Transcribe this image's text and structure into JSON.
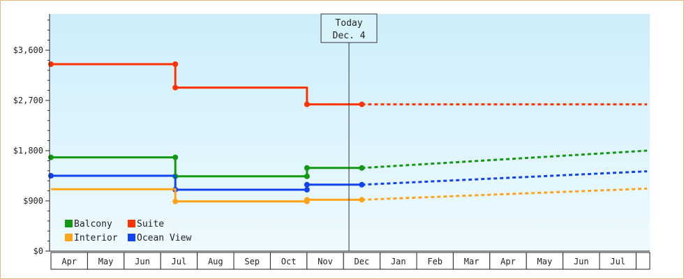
{
  "chart_data": {
    "type": "line",
    "title": "",
    "xlabel": "",
    "ylabel": "",
    "ylim": [
      0,
      4250
    ],
    "yticks": [
      {
        "value": 0,
        "label": "$0"
      },
      {
        "value": 900,
        "label": "$900"
      },
      {
        "value": 1800,
        "label": "$1,800"
      },
      {
        "value": 2700,
        "label": "$2,700"
      },
      {
        "value": 3600,
        "label": "$3,600"
      }
    ],
    "x_months": [
      "Apr",
      "May",
      "Jun",
      "Jul",
      "Aug",
      "Sep",
      "Oct",
      "Nov",
      "Dec",
      "Jan",
      "Feb",
      "Mar",
      "Apr",
      "May",
      "Jun",
      "Jul"
    ],
    "today_marker": {
      "line1": "Today",
      "line2": "Dec. 4",
      "x": 8.0
    },
    "legend_position": "bottom-left",
    "series": [
      {
        "name": "Suite",
        "color": "#ff3300",
        "history": [
          [
            -0.5,
            3350
          ],
          [
            2.9,
            3350
          ],
          [
            2.9,
            2930
          ],
          [
            6.5,
            2930
          ],
          [
            6.5,
            2630
          ],
          [
            8.0,
            2630
          ]
        ],
        "markers": [
          [
            -0.5,
            3350
          ],
          [
            2.9,
            3350
          ],
          [
            2.9,
            2930
          ],
          [
            6.5,
            2630
          ],
          [
            8.0,
            2630
          ]
        ],
        "forecast": [
          [
            8.0,
            2630
          ],
          [
            15.8,
            2630
          ]
        ]
      },
      {
        "name": "Balcony",
        "color": "#119911",
        "history": [
          [
            -0.5,
            1680
          ],
          [
            2.9,
            1680
          ],
          [
            2.9,
            1340
          ],
          [
            6.5,
            1340
          ],
          [
            6.5,
            1490
          ],
          [
            8.0,
            1490
          ]
        ],
        "markers": [
          [
            -0.5,
            1680
          ],
          [
            2.9,
            1680
          ],
          [
            2.9,
            1340
          ],
          [
            6.5,
            1340
          ],
          [
            6.5,
            1490
          ],
          [
            8.0,
            1490
          ]
        ],
        "forecast": [
          [
            8.0,
            1490
          ],
          [
            15.8,
            1800
          ]
        ]
      },
      {
        "name": "Ocean View",
        "color": "#1144ee",
        "history": [
          [
            -0.5,
            1350
          ],
          [
            2.9,
            1350
          ],
          [
            2.9,
            1100
          ],
          [
            6.5,
            1100
          ],
          [
            6.5,
            1190
          ],
          [
            8.0,
            1190
          ]
        ],
        "markers": [
          [
            -0.5,
            1350
          ],
          [
            2.9,
            1100
          ],
          [
            6.5,
            1100
          ],
          [
            6.5,
            1190
          ],
          [
            8.0,
            1190
          ]
        ],
        "forecast": [
          [
            8.0,
            1190
          ],
          [
            15.8,
            1430
          ]
        ]
      },
      {
        "name": "Interior",
        "color": "#ffa31a",
        "history": [
          [
            -0.5,
            1110
          ],
          [
            2.9,
            1110
          ],
          [
            2.9,
            890
          ],
          [
            6.5,
            890
          ],
          [
            6.5,
            920
          ],
          [
            8.0,
            920
          ]
        ],
        "markers": [
          [
            2.9,
            890
          ],
          [
            6.5,
            890
          ],
          [
            6.5,
            920
          ],
          [
            8.0,
            920
          ]
        ],
        "forecast": [
          [
            8.0,
            920
          ],
          [
            15.8,
            1120
          ]
        ]
      }
    ],
    "legend": [
      {
        "name": "Balcony",
        "color": "#119911"
      },
      {
        "name": "Suite",
        "color": "#ff3300"
      },
      {
        "name": "Interior",
        "color": "#ffa31a"
      },
      {
        "name": "Ocean View",
        "color": "#1144ee"
      }
    ]
  }
}
